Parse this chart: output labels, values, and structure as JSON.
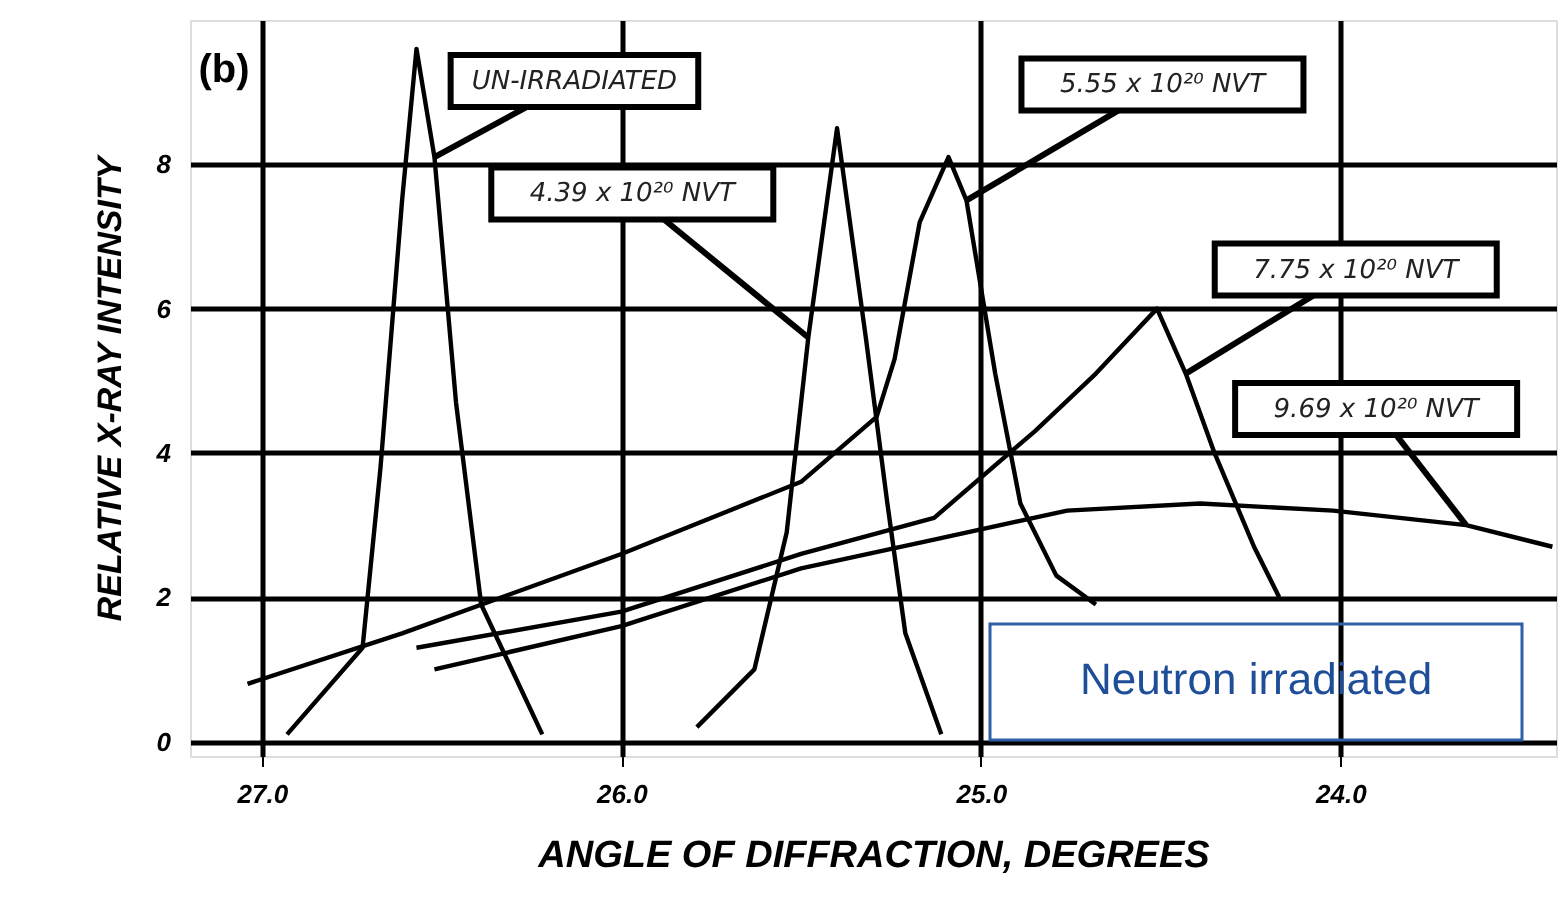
{
  "chart_data": {
    "type": "line",
    "xlabel": "ANGLE OF DIFFRACTION,  DEGREES",
    "ylabel": "RELATIVE X-RAY INTENSITY",
    "xlim": [
      27.2,
      23.4
    ],
    "ylim": [
      -0.2,
      10.0
    ],
    "xticks": [
      {
        "value": 27,
        "label": "27.0"
      },
      {
        "value": 26,
        "label": "26.0"
      },
      {
        "value": 25,
        "label": "25.0"
      },
      {
        "value": 24,
        "label": "24.0"
      }
    ],
    "yticks": [
      0,
      2,
      4,
      6,
      8
    ],
    "grid": true,
    "marker": "none",
    "line_style": "solid",
    "series": [
      {
        "color": "#000000",
        "x": [
          26.93,
          26.72,
          26.67,
          26.61,
          26.57,
          26.52,
          26.46,
          26.39,
          26.22
        ],
        "values": [
          0.1,
          1.3,
          3.8,
          7.5,
          9.6,
          8.1,
          4.7,
          1.9,
          0.1
        ]
      },
      {
        "color": "#000000",
        "x": [
          25.79,
          25.63,
          25.54,
          25.48,
          25.4,
          25.32,
          25.26,
          25.21,
          25.11
        ],
        "values": [
          0.2,
          1.0,
          2.9,
          5.6,
          8.5,
          5.6,
          3.3,
          1.5,
          0.1
        ]
      },
      {
        "color": "#000000",
        "x": [
          27.04,
          26.61,
          26.0,
          25.5,
          25.29,
          25.24,
          25.17,
          25.09,
          25.04,
          24.96,
          24.89,
          24.79,
          24.68
        ],
        "values": [
          0.8,
          1.5,
          2.6,
          3.6,
          4.5,
          5.3,
          7.2,
          8.1,
          7.5,
          5.1,
          3.3,
          2.3,
          1.9
        ]
      },
      {
        "color": "#000000",
        "x": [
          26.57,
          26.0,
          25.5,
          25.13,
          24.85,
          24.68,
          24.51,
          24.43,
          24.35,
          24.24,
          24.17
        ],
        "values": [
          1.3,
          1.8,
          2.6,
          3.1,
          4.3,
          5.1,
          6.0,
          5.1,
          4.0,
          2.7,
          2.0
        ]
      },
      {
        "color": "#000000",
        "x": [
          26.52,
          26.0,
          25.5,
          25.13,
          24.76,
          24.39,
          24.02,
          23.65,
          23.41
        ],
        "values": [
          1.0,
          1.6,
          2.4,
          2.8,
          3.2,
          3.3,
          3.2,
          3.0,
          2.7
        ]
      }
    ],
    "annotations": [
      {
        "text": "UN-IRRADIATED",
        "x": 26.52,
        "y": 8.1
      },
      {
        "text": "4.39 x 10²⁰ NVT",
        "x": 25.48,
        "y": 5.6
      },
      {
        "text": "5.55 x 10²⁰ NVT",
        "x": 25.04,
        "y": 7.5
      },
      {
        "text": "7.75 x 10²⁰ NVT",
        "x": 24.43,
        "y": 5.1
      },
      {
        "text": "9.69 x 10²⁰ NVT",
        "x": 23.65,
        "y": 3.0
      },
      "(b)",
      "Neutron irradiated"
    ]
  }
}
